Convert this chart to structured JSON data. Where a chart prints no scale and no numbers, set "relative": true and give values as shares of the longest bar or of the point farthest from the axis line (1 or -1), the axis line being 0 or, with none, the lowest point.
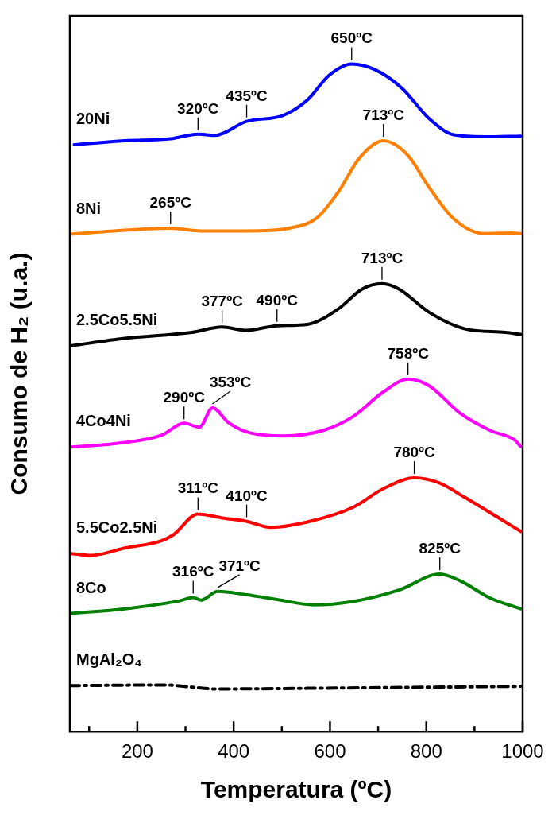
{
  "chart_data": {
    "type": "line",
    "xlabel": "Temperatura (ºC)",
    "ylabel": "Consumo de H₂ (u.a.)",
    "relative": true,
    "marker": "none",
    "line_style": "solid",
    "xlim": [
      60,
      1000
    ],
    "xticks": [
      {
        "value": 100,
        "label": null
      },
      200,
      {
        "value": 300,
        "label": null
      },
      400,
      {
        "value": 500,
        "label": null
      },
      600,
      {
        "value": 700,
        "label": null
      },
      800,
      {
        "value": 900,
        "label": null
      },
      1000
    ],
    "series": [
      {
        "name": "20Ni",
        "color": "#0000ff",
        "x": [
          69,
          174,
          269,
          326,
          360,
          427,
          503,
          553,
          598,
          645,
          692,
          749,
          806,
          857,
          920,
          996
        ],
        "values": [
          0.879,
          0.885,
          0.888,
          0.895,
          0.893,
          0.914,
          0.923,
          0.946,
          0.983,
          1.0,
          0.992,
          0.964,
          0.918,
          0.894,
          0.891,
          0.892
        ]
      },
      {
        "name": "8Ni",
        "color": "#ff8000",
        "x": [
          60,
          174,
          269,
          332,
          427,
          522,
          572,
          617,
          661,
          711,
          762,
          806,
          857,
          920,
          977,
          996
        ],
        "values": [
          0.745,
          0.751,
          0.754,
          0.75,
          0.75,
          0.755,
          0.769,
          0.808,
          0.859,
          0.885,
          0.863,
          0.815,
          0.768,
          0.746,
          0.747,
          0.746
        ]
      },
      {
        "name": "2.5Co5.5Ni",
        "color": "#000000",
        "x": [
          63,
          174,
          313,
          376,
          427,
          490,
          553,
          617,
          667,
          708,
          743,
          806,
          882,
          964,
          996
        ],
        "values": [
          0.578,
          0.589,
          0.598,
          0.606,
          0.601,
          0.608,
          0.61,
          0.633,
          0.663,
          0.671,
          0.663,
          0.628,
          0.603,
          0.598,
          0.595
        ]
      },
      {
        "name": "4Co4Ni",
        "color": "#ff00ff",
        "x": [
          60,
          174,
          250,
          297,
          329,
          356,
          389,
          427,
          503,
          585,
          648,
          711,
          762,
          806,
          870,
          933,
          983,
          996
        ],
        "values": [
          0.426,
          0.433,
          0.444,
          0.462,
          0.456,
          0.485,
          0.463,
          0.449,
          0.443,
          0.451,
          0.472,
          0.509,
          0.528,
          0.518,
          0.477,
          0.451,
          0.437,
          0.427
        ]
      },
      {
        "name": "5.5Co2.5Ni",
        "color": "#ff0000",
        "x": [
          60,
          104,
          174,
          250,
          275,
          326,
          376,
          427,
          477,
          553,
          648,
          711,
          775,
          825,
          882,
          946,
          996
        ],
        "values": [
          0.267,
          0.264,
          0.275,
          0.286,
          0.295,
          0.326,
          0.32,
          0.315,
          0.306,
          0.314,
          0.336,
          0.364,
          0.38,
          0.373,
          0.35,
          0.322,
          0.3
        ]
      },
      {
        "name": "8Co",
        "color": "#008000",
        "x": [
          60,
          174,
          288,
          316,
          332,
          367,
          427,
          490,
          566,
          648,
          743,
          828,
          870,
          933,
          996
        ],
        "values": [
          0.177,
          0.184,
          0.196,
          0.201,
          0.197,
          0.21,
          0.205,
          0.198,
          0.19,
          0.195,
          0.212,
          0.236,
          0.226,
          0.2,
          0.184
        ]
      },
      {
        "name": "MgAl₂O₄",
        "color": "#000000",
        "line_style": "dashed",
        "x": [
          60,
          256,
          364,
          553,
          996
        ],
        "values": [
          0.069,
          0.07,
          0.064,
          0.065,
          0.068
        ]
      }
    ],
    "annotations": [
      {
        "text": "650ºC",
        "x": 645,
        "y": 1.0
      },
      {
        "text": "320ºC",
        "x": 326,
        "y": 0.895
      },
      {
        "text": "435ºC",
        "x": 427,
        "y": 0.914
      },
      {
        "text": "713ºC",
        "x": 711,
        "y": 0.885
      },
      {
        "text": "265ºC",
        "x": 269,
        "y": 0.754
      },
      {
        "text": "713ºC",
        "x": 708,
        "y": 0.671
      },
      {
        "text": "377ºC",
        "x": 376,
        "y": 0.606
      },
      {
        "text": "490ºC",
        "x": 490,
        "y": 0.608
      },
      {
        "text": "758ºC",
        "x": 762,
        "y": 0.528
      },
      {
        "text": "290ºC",
        "x": 297,
        "y": 0.462
      },
      {
        "text": "353ºC",
        "x": 356,
        "y": 0.485
      },
      {
        "text": "780ºC",
        "x": 775,
        "y": 0.38
      },
      {
        "text": "311ºC",
        "x": 326,
        "y": 0.326
      },
      {
        "text": "410ºC",
        "x": 427,
        "y": 0.315
      },
      {
        "text": "825ºC",
        "x": 828,
        "y": 0.236
      },
      {
        "text": "316ºC",
        "x": 316,
        "y": 0.201
      },
      {
        "text": "371ºC",
        "x": 367,
        "y": 0.21
      }
    ]
  }
}
